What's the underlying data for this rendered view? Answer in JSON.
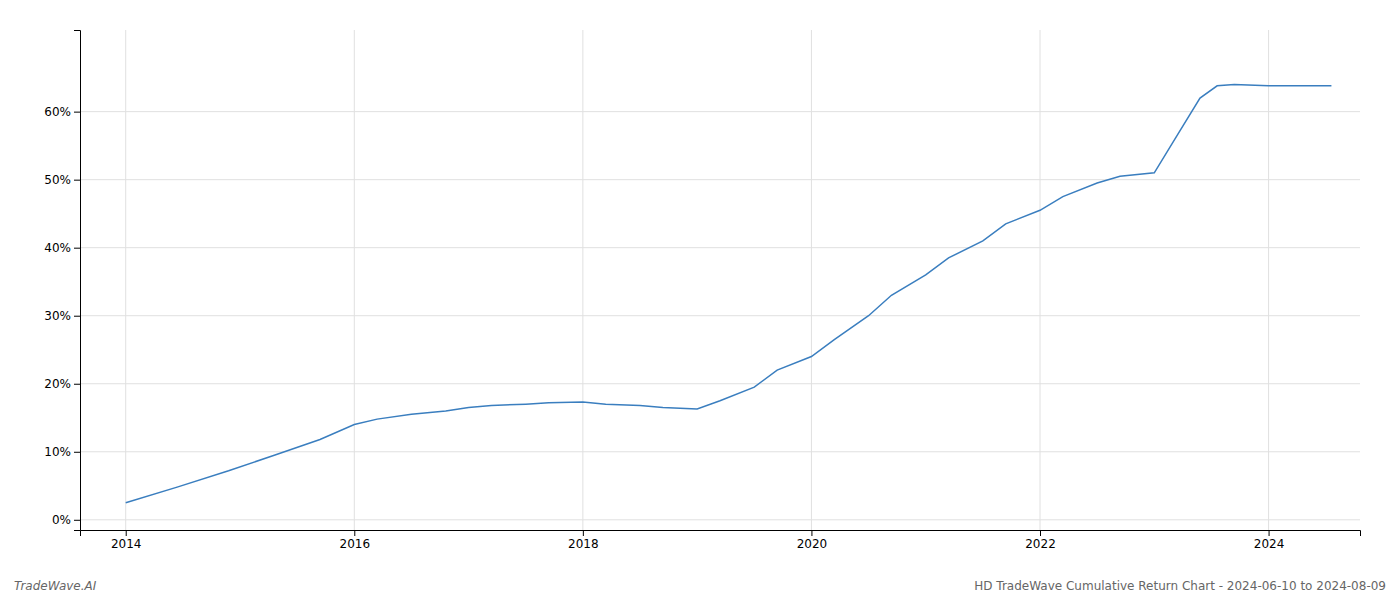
{
  "chart_data": {
    "type": "line",
    "x": [
      2014.0,
      2014.45,
      2014.9,
      2015.3,
      2015.7,
      2016.0,
      2016.2,
      2016.5,
      2016.8,
      2017.0,
      2017.2,
      2017.5,
      2017.7,
      2018.0,
      2018.2,
      2018.5,
      2018.7,
      2019.0,
      2019.2,
      2019.5,
      2019.7,
      2020.0,
      2020.2,
      2020.5,
      2020.7,
      2021.0,
      2021.2,
      2021.5,
      2021.7,
      2022.0,
      2022.2,
      2022.5,
      2022.7,
      2023.0,
      2023.2,
      2023.4,
      2023.55,
      2023.7,
      2024.0,
      2024.3,
      2024.55
    ],
    "values": [
      0.025,
      0.048,
      0.072,
      0.095,
      0.118,
      0.14,
      0.148,
      0.155,
      0.16,
      0.165,
      0.168,
      0.17,
      0.172,
      0.173,
      0.17,
      0.168,
      0.165,
      0.163,
      0.175,
      0.195,
      0.22,
      0.24,
      0.265,
      0.3,
      0.33,
      0.36,
      0.385,
      0.41,
      0.435,
      0.455,
      0.475,
      0.495,
      0.505,
      0.51,
      0.565,
      0.62,
      0.638,
      0.64,
      0.638,
      0.638,
      0.638
    ],
    "color": "#3a7ebf",
    "xlim": [
      2013.6,
      2024.8
    ],
    "xticks": [
      2014,
      2016,
      2018,
      2020,
      2022,
      2024
    ],
    "ylim": [
      -0.015,
      0.72
    ],
    "yticks": [
      {
        "value": 0.0,
        "label": "0%"
      },
      {
        "value": 0.1,
        "label": "10%"
      },
      {
        "value": 0.2,
        "label": "20%"
      },
      {
        "value": 0.3,
        "label": "30%"
      },
      {
        "value": 0.4,
        "label": "40%"
      },
      {
        "value": 0.5,
        "label": "50%"
      },
      {
        "value": 0.6,
        "label": "60%"
      }
    ],
    "grid": true,
    "annotations": [
      "TradeWave.AI",
      "HD TradeWave Cumulative Return Chart - 2024-06-10 to 2024-08-09"
    ]
  }
}
